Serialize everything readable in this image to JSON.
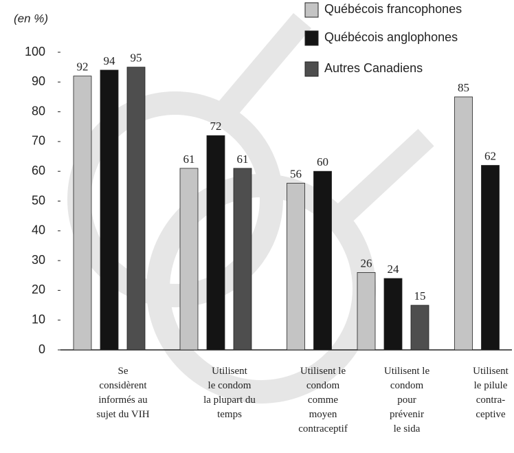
{
  "chart_data": {
    "type": "bar",
    "ylabel": "(en %)",
    "categories": [
      "Se\nconsidèrent\ninformés au\nsujet du VIH",
      "Utilisent\nle condom\nla plupart du\ntemps",
      "Utilisent le\ncondom\ncomme\nmoyen\ncontraceptif",
      "Utilisent le\ncondom\npour\nprévenir\nle sida",
      "Utilisent\nle pilule\ncontra-\nceptive"
    ],
    "series": [
      {
        "name": "Québécois francophones",
        "color": "#c4c4c4",
        "values": [
          92,
          61,
          56,
          26,
          85
        ]
      },
      {
        "name": "Québécois anglophones",
        "color": "#141414",
        "values": [
          94,
          72,
          60,
          24,
          62
        ]
      },
      {
        "name": "Autres Canadiens",
        "color": "#4e4e4e",
        "values": [
          95,
          61,
          null,
          15,
          null
        ]
      }
    ],
    "ylim": [
      0,
      100
    ],
    "yticks": [
      0,
      10,
      20,
      30,
      40,
      50,
      60,
      70,
      80,
      90,
      100
    ],
    "grid": false,
    "legend": "top-right"
  }
}
